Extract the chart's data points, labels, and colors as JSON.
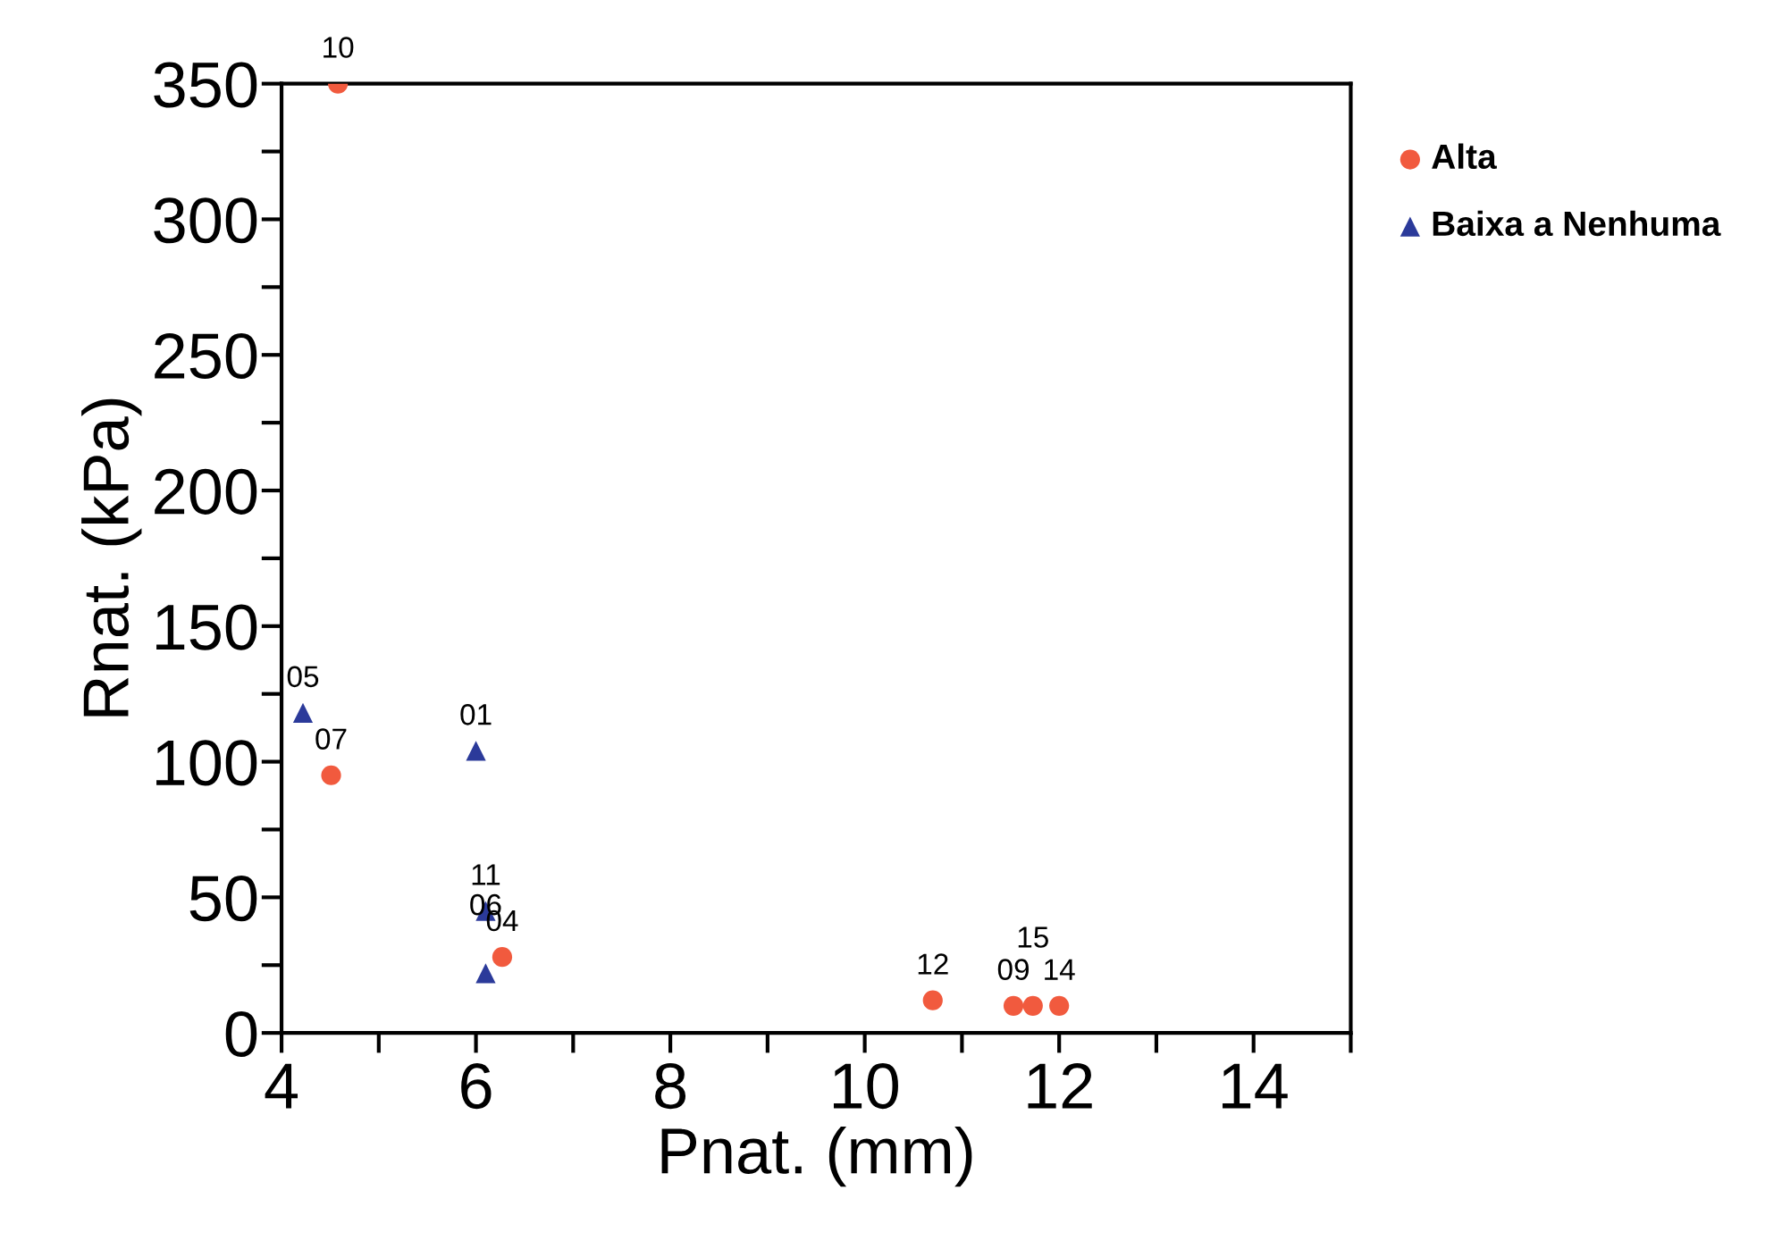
{
  "chart_data": {
    "type": "scatter",
    "xlabel": "Pnat. (mm)",
    "ylabel": "Rnat. (kPa)",
    "series": [
      {
        "name": "Alta",
        "color": "#f15a3e",
        "marker": "circle",
        "x": [
          4.58,
          4.51,
          6.27,
          10.7,
          11.53,
          11.73,
          12.0
        ],
        "values": [
          350,
          95,
          28,
          12,
          10,
          10,
          10
        ]
      },
      {
        "name": "Baixa a Nenhuma",
        "color": "#2b3a9a",
        "marker": "triangle",
        "x": [
          4.22,
          6.0,
          6.1,
          6.1
        ],
        "values": [
          118,
          104,
          45,
          22
        ]
      }
    ],
    "annotations": [
      {
        "text": "10",
        "x": 4.58,
        "y": 350
      },
      {
        "text": "07",
        "x": 4.51,
        "y": 95
      },
      {
        "text": "04",
        "x": 6.27,
        "y": 28
      },
      {
        "text": "12",
        "x": 10.7,
        "y": 12
      },
      {
        "text": "09",
        "x": 11.53,
        "y": 10
      },
      {
        "text": "15",
        "x": 11.73,
        "y": 10
      },
      {
        "text": "14",
        "x": 12.0,
        "y": 10
      },
      {
        "text": "05",
        "x": 4.22,
        "y": 118
      },
      {
        "text": "01",
        "x": 6.0,
        "y": 104
      },
      {
        "text": "11",
        "x": 6.1,
        "y": 45
      },
      {
        "text": "06",
        "x": 6.1,
        "y": 22
      }
    ],
    "xlim": [
      4,
      15
    ],
    "ylim": [
      0,
      350
    ],
    "xticks": [
      4,
      {
        "value": 5,
        "label": null
      },
      6,
      {
        "value": 7,
        "label": null
      },
      8,
      {
        "value": 9,
        "label": null
      },
      10,
      {
        "value": 11,
        "label": null
      },
      12,
      {
        "value": 13,
        "label": null
      },
      14,
      {
        "value": 15,
        "label": null
      }
    ],
    "yticks": [
      0,
      {
        "value": 25,
        "label": null
      },
      50,
      {
        "value": 75,
        "label": null
      },
      100,
      {
        "value": 125,
        "label": null
      },
      150,
      {
        "value": 175,
        "label": null
      },
      200,
      {
        "value": 225,
        "label": null
      },
      250,
      {
        "value": 275,
        "label": null
      },
      300,
      {
        "value": 325,
        "label": null
      },
      350
    ],
    "legend": "top right",
    "grid": false
  }
}
